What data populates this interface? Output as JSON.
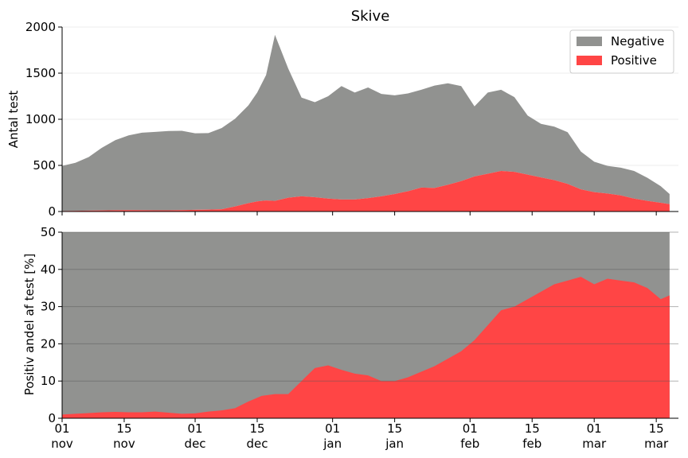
{
  "title": "Skive",
  "colors": {
    "negative": "#919290",
    "positive": "#ff4545",
    "grid": "#b0b0b0"
  },
  "chart_data": [
    {
      "type": "area",
      "stacked": true,
      "ylabel": "Antal test",
      "ylim": [
        0,
        2000
      ],
      "yticks": [
        0,
        500,
        1000,
        1500,
        2000
      ],
      "xlim": [
        "2021-11-01",
        "2022-03-20"
      ],
      "grid": true,
      "legend": "top-right",
      "legend_entries": [
        "Negative",
        "Positive"
      ],
      "x": [
        "2021-11-01",
        "2021-11-04",
        "2021-11-07",
        "2021-11-10",
        "2021-11-13",
        "2021-11-16",
        "2021-11-19",
        "2021-11-22",
        "2021-11-25",
        "2021-11-28",
        "2021-12-01",
        "2021-12-04",
        "2021-12-07",
        "2021-12-10",
        "2021-12-13",
        "2021-12-15",
        "2021-12-17",
        "2021-12-19",
        "2021-12-22",
        "2021-12-25",
        "2021-12-28",
        "2021-12-31",
        "2022-01-03",
        "2022-01-06",
        "2022-01-09",
        "2022-01-12",
        "2022-01-15",
        "2022-01-18",
        "2022-01-21",
        "2022-01-24",
        "2022-01-27",
        "2022-01-30",
        "2022-02-02",
        "2022-02-05",
        "2022-02-08",
        "2022-02-11",
        "2022-02-14",
        "2022-02-17",
        "2022-02-20",
        "2022-02-23",
        "2022-02-26",
        "2022-03-01",
        "2022-03-04",
        "2022-03-07",
        "2022-03-10",
        "2022-03-13",
        "2022-03-16",
        "2022-03-18"
      ],
      "series": [
        {
          "name": "Positive",
          "values": [
            5,
            8,
            10,
            12,
            14,
            15,
            14,
            13,
            13,
            15,
            18,
            20,
            25,
            55,
            90,
            110,
            120,
            115,
            150,
            165,
            155,
            140,
            130,
            130,
            145,
            165,
            190,
            220,
            260,
            255,
            290,
            330,
            380,
            410,
            440,
            430,
            400,
            370,
            340,
            300,
            240,
            210,
            195,
            175,
            140,
            115,
            95,
            80
          ]
        },
        {
          "name": "Negative",
          "values": [
            490,
            520,
            580,
            680,
            760,
            810,
            840,
            850,
            860,
            860,
            830,
            830,
            880,
            950,
            1060,
            1180,
            1360,
            1800,
            1400,
            1070,
            1030,
            1110,
            1230,
            1160,
            1200,
            1110,
            1070,
            1060,
            1060,
            1110,
            1100,
            1030,
            760,
            880,
            880,
            810,
            640,
            580,
            580,
            560,
            410,
            330,
            300,
            300,
            300,
            250,
            180,
            110
          ]
        }
      ]
    },
    {
      "type": "area",
      "ylabel": "Positiv andel af test [%]",
      "ylim": [
        0,
        50
      ],
      "yticks": [
        0,
        10,
        20,
        30,
        40,
        50
      ],
      "grid": true,
      "x": [
        "2021-11-01",
        "2021-11-04",
        "2021-11-07",
        "2021-11-10",
        "2021-11-13",
        "2021-11-16",
        "2021-11-19",
        "2021-11-22",
        "2021-11-25",
        "2021-11-28",
        "2021-12-01",
        "2021-12-04",
        "2021-12-07",
        "2021-12-10",
        "2021-12-13",
        "2021-12-16",
        "2021-12-19",
        "2021-12-22",
        "2021-12-25",
        "2021-12-28",
        "2021-12-31",
        "2022-01-03",
        "2022-01-06",
        "2022-01-09",
        "2022-01-12",
        "2022-01-15",
        "2022-01-18",
        "2022-01-21",
        "2022-01-24",
        "2022-01-27",
        "2022-01-30",
        "2022-02-02",
        "2022-02-05",
        "2022-02-08",
        "2022-02-11",
        "2022-02-14",
        "2022-02-17",
        "2022-02-20",
        "2022-02-23",
        "2022-02-26",
        "2022-03-01",
        "2022-03-04",
        "2022-03-07",
        "2022-03-10",
        "2022-03-13",
        "2022-03-16",
        "2022-03-18"
      ],
      "series": [
        {
          "name": "Positive",
          "values": [
            1,
            1.2,
            1.4,
            1.6,
            1.7,
            1.6,
            1.6,
            1.8,
            1.5,
            1.2,
            1.3,
            1.8,
            2.1,
            2.7,
            4.5,
            6,
            6.5,
            6.5,
            10,
            13.5,
            14.2,
            13,
            12,
            11.5,
            10,
            10,
            11,
            12.5,
            14,
            16,
            18,
            21,
            25,
            29,
            30,
            32,
            34,
            36,
            37,
            38,
            36,
            37.5,
            37,
            36.5,
            35,
            32,
            33
          ],
          "note_fill_to": 50
        }
      ]
    }
  ],
  "x_ticks": [
    {
      "date": "2021-11-01",
      "day": "01",
      "month": "nov"
    },
    {
      "date": "2021-11-15",
      "day": "15",
      "month": "nov"
    },
    {
      "date": "2021-12-01",
      "day": "01",
      "month": "dec"
    },
    {
      "date": "2021-12-15",
      "day": "15",
      "month": "dec"
    },
    {
      "date": "2022-01-01",
      "day": "01",
      "month": "jan"
    },
    {
      "date": "2022-01-15",
      "day": "15",
      "month": "jan"
    },
    {
      "date": "2022-02-01",
      "day": "01",
      "month": "feb"
    },
    {
      "date": "2022-02-15",
      "day": "15",
      "month": "feb"
    },
    {
      "date": "2022-03-01",
      "day": "01",
      "month": "mar"
    },
    {
      "date": "2022-03-15",
      "day": "15",
      "month": "mar"
    }
  ]
}
